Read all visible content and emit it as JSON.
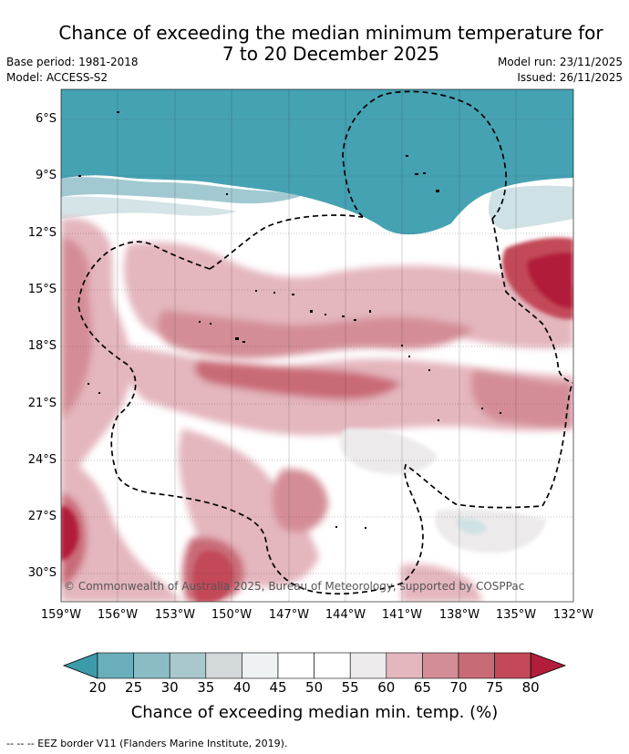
{
  "title": {
    "line1": "Chance of exceeding the median minimum temperature for",
    "line2": "7 to 20 December 2025"
  },
  "meta": {
    "base_period": "Base period: 1981-2018",
    "model": "Model: ACCESS-S2",
    "model_run": "Model run: 23/11/2025",
    "issued": "Issued: 26/11/2025"
  },
  "map": {
    "lon_range": [
      -159,
      -132
    ],
    "lat_range": [
      -31.5,
      -4.5
    ],
    "x_ticks": [
      "159°W",
      "156°W",
      "153°W",
      "150°W",
      "147°W",
      "144°W",
      "141°W",
      "138°W",
      "135°W",
      "132°W"
    ],
    "y_ticks": [
      "6°S",
      "9°S",
      "12°S",
      "15°S",
      "18°S",
      "21°S",
      "24°S",
      "27°S",
      "30°S"
    ],
    "copyright": "© Commonwealth of Australia 2025, Bureau of Meteorology, supported by COSPPac",
    "colors": {
      "teal_dark": "#45a2b3",
      "teal_mid": "#6aaebb",
      "teal_light": "#cfe1e4",
      "neutral": "#ffffff",
      "grey": "#eceaea",
      "pink_light": "#e4b6bd",
      "pink_mid": "#d48d96",
      "red_mid": "#c5606e",
      "red_dark": "#b21d3b"
    }
  },
  "colorbar": {
    "labels": [
      "20",
      "25",
      "30",
      "35",
      "40",
      "45",
      "50",
      "55",
      "60",
      "65",
      "70",
      "75",
      "80"
    ],
    "colors": [
      "#3d9aab",
      "#6aaebb",
      "#8bbcc6",
      "#a9c8cd",
      "#d3d9db",
      "#eef2f3",
      "#ffffff",
      "#ffffff",
      "#eceaea",
      "#e4b6bd",
      "#d48d96",
      "#c96b77",
      "#c34958",
      "#b21d3b"
    ],
    "title": "Chance of exceeding median min. temp. (%)"
  },
  "footer": "--  --  -- EEZ border V11 (Flanders Marine Institute, 2019)."
}
